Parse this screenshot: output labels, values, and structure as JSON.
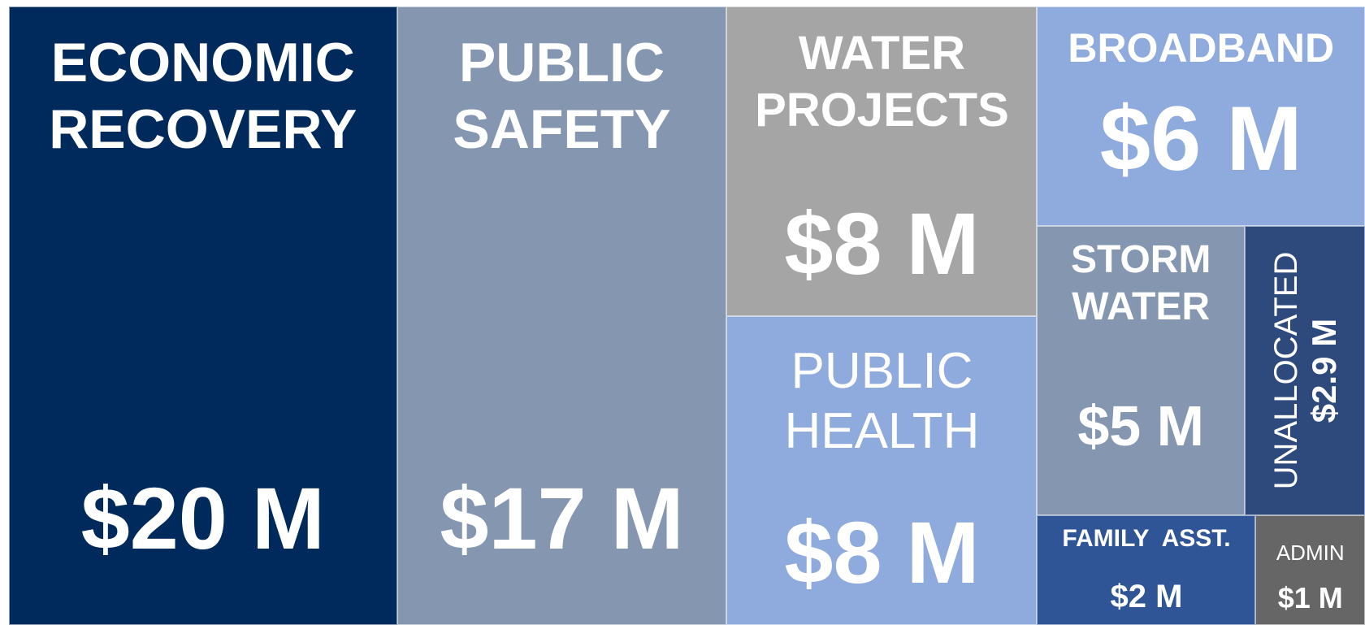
{
  "chart_data": {
    "type": "treemap",
    "labels": [
      "ECONOMIC RECOVERY",
      "PUBLIC SAFETY",
      "WATER PROJECTS",
      "PUBLIC HEALTH",
      "BROADBAND",
      "STORM WATER",
      "UNALLOCATED",
      "FAMILY  ASST.",
      "ADMIN"
    ],
    "values": [
      20,
      17,
      8,
      8,
      6,
      5,
      2.9,
      2,
      1
    ],
    "value_labels": [
      "$20 M",
      "$17 M",
      "$8 M",
      "$8 M",
      "$6 M",
      "$5 M",
      "$2.9 M",
      "$2 M",
      "$1 M"
    ],
    "colors": [
      "#002a5c",
      "#8496b0",
      "#a5a5a5",
      "#8faadc",
      "#8faadc",
      "#8496b0",
      "#2e4a7d",
      "#2f5597",
      "#666666"
    ]
  }
}
